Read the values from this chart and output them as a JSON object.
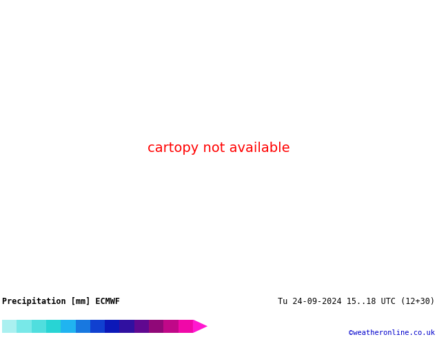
{
  "title_left": "Precipitation [mm] ECMWF",
  "title_right": "Tu 24-09-2024 15..18 UTC (12+30)",
  "credit": "©weatheronline.co.uk",
  "colorbar_levels": [
    0.1,
    0.5,
    1,
    2,
    5,
    10,
    15,
    20,
    25,
    30,
    35,
    40,
    45,
    50
  ],
  "colorbar_colors": [
    "#aaf0f0",
    "#78e8e8",
    "#50dede",
    "#28d4d4",
    "#20b4f0",
    "#1878e0",
    "#1040d0",
    "#0c18b8",
    "#3010a0",
    "#600890",
    "#900878",
    "#c00888",
    "#f008a8",
    "#ff18d0"
  ],
  "bg_color": "#ffffff",
  "map_land": "#c8e8a0",
  "map_sea": "#c8eef8",
  "map_border": "#888888",
  "red_iso": "#cc0000",
  "blue_iso": "#0000bb",
  "credit_color": "#0000cc",
  "figsize": [
    6.34,
    4.9
  ],
  "dpi": 100,
  "extent": [
    -25.0,
    45.0,
    25.0,
    75.0
  ]
}
